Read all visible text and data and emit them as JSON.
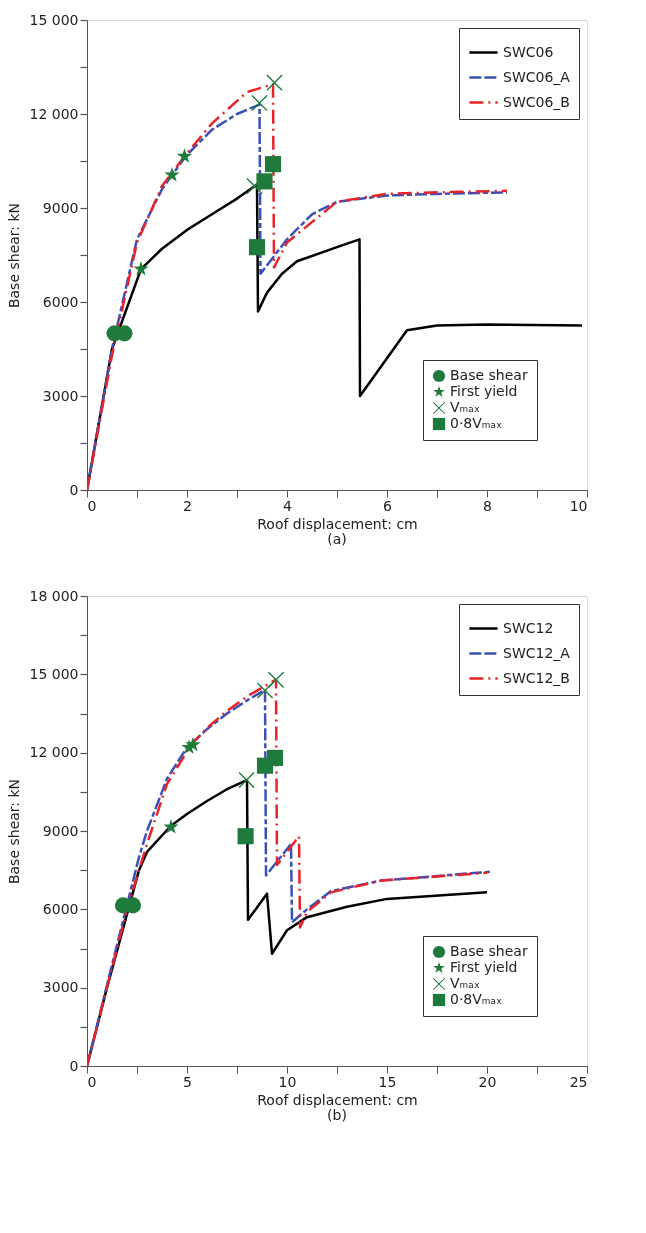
{
  "chart_data": [
    {
      "type": "line",
      "xlabel": "Roof displacement: cm",
      "ylabel": "Base shear: kN",
      "annotations": [
        "(a)"
      ],
      "grid": false,
      "legend": "top right",
      "xlim": [
        0,
        10
      ],
      "xticks": [
        0,
        {
          "value": 1,
          "label": null
        },
        2,
        {
          "value": 3,
          "label": null
        },
        4,
        {
          "value": 5,
          "label": null
        },
        6,
        {
          "value": 7,
          "label": null
        },
        8,
        {
          "value": 9,
          "label": null
        },
        10
      ],
      "ylim": [
        0,
        15000
      ],
      "yticks": [
        0,
        {
          "value": 1500,
          "label": null
        },
        3000,
        {
          "value": 4500,
          "label": null
        },
        6000,
        {
          "value": 7500,
          "label": null
        },
        9000,
        {
          "value": 10500,
          "label": null
        },
        {
          "value": 12000,
          "label": "12 000"
        },
        {
          "value": 13500,
          "label": null
        },
        {
          "value": 15000,
          "label": "15 000"
        }
      ],
      "series": [
        {
          "name": "SWC06",
          "color": "#000000",
          "line_style": "solid",
          "x": [
            0,
            0.5,
            1.08,
            1.5,
            2,
            2.5,
            3,
            3.4,
            3.42,
            3.6,
            3.9,
            4.2,
            5,
            5.45,
            5.46,
            6.4,
            7,
            8,
            9.9
          ],
          "values": [
            0,
            4500,
            7050,
            7700,
            8300,
            8800,
            9300,
            9750,
            5700,
            6300,
            6900,
            7300,
            7750,
            8000,
            3000,
            5100,
            5250,
            5280,
            5250
          ]
        },
        {
          "name": "SWC06_A",
          "color": "#3b4fb8",
          "line_style": "dashed",
          "x": [
            0,
            0.5,
            1,
            1.5,
            1.7,
            2,
            2.5,
            3,
            3.45,
            3.47,
            4,
            4.5,
            5,
            6,
            7,
            8.4
          ],
          "values": [
            0,
            4500,
            8000,
            9600,
            10050,
            10700,
            11500,
            12000,
            12300,
            6900,
            8000,
            8800,
            9200,
            9400,
            9450,
            9500
          ]
        },
        {
          "name": "SWC06_B",
          "color": "#e8232a",
          "line_style": "dashdot",
          "x": [
            0,
            0.5,
            1,
            1.5,
            1.95,
            2.5,
            3.2,
            3.72,
            3.74,
            4,
            5,
            6,
            7,
            8.4
          ],
          "values": [
            0,
            4300,
            7900,
            9700,
            10650,
            11700,
            12700,
            12950,
            7100,
            7900,
            9200,
            9450,
            9500,
            9550
          ]
        },
        {
          "name": "Base shear",
          "type": "scatter",
          "marker": "circle",
          "color": "#1e7b3c",
          "x": [
            0.55,
            0.75
          ],
          "values": [
            5000,
            5000
          ]
        },
        {
          "name": "First yield",
          "type": "scatter",
          "marker": "star",
          "color": "#1e7b3c",
          "x": [
            1.08,
            1.7,
            1.95
          ],
          "values": [
            7050,
            10050,
            10650
          ]
        },
        {
          "name": "Vₘₐₓ",
          "type": "scatter",
          "marker": "cross",
          "color": "#1e7b3c",
          "x": [
            3.35,
            3.45,
            3.75
          ],
          "values": [
            9700,
            12350,
            13000
          ]
        },
        {
          "name": "0·8Vₘₐₓ",
          "type": "scatter",
          "marker": "square",
          "color": "#1e7b3c",
          "x": [
            3.4,
            3.55,
            3.72
          ],
          "values": [
            7750,
            9850,
            10400
          ]
        }
      ]
    },
    {
      "type": "line",
      "xlabel": "Roof displacement: cm",
      "ylabel": "Base shear: kN",
      "annotations": [
        "(b)"
      ],
      "grid": false,
      "legend": "top right",
      "xlim": [
        0,
        25
      ],
      "xticks": [
        0,
        {
          "value": 2.5,
          "label": null
        },
        5,
        {
          "value": 7.5,
          "label": null
        },
        10,
        {
          "value": 12.5,
          "label": null
        },
        15,
        {
          "value": 17.5,
          "label": null
        },
        20,
        {
          "value": 22.5,
          "label": null
        },
        25
      ],
      "ylim": [
        0,
        18000
      ],
      "yticks": [
        0,
        {
          "value": 1500,
          "label": null
        },
        3000,
        {
          "value": 4500,
          "label": null
        },
        6000,
        {
          "value": 7500,
          "label": null
        },
        9000,
        {
          "value": 10500,
          "label": null
        },
        {
          "value": 12000,
          "label": "12 000"
        },
        {
          "value": 13500,
          "label": null
        },
        {
          "value": 15000,
          "label": "15 000"
        },
        {
          "value": 16500,
          "label": null
        },
        {
          "value": 18000,
          "label": "18 000"
        }
      ],
      "series": [
        {
          "name": "SWC12",
          "color": "#000000",
          "line_style": "solid",
          "x": [
            0,
            1,
            2.6,
            3,
            4.2,
            5,
            6,
            7,
            8,
            8.05,
            9,
            9.25,
            10,
            11,
            13,
            15,
            20
          ],
          "values": [
            0,
            3000,
            7500,
            8200,
            9200,
            9650,
            10150,
            10600,
            10950,
            5600,
            6600,
            4300,
            5200,
            5700,
            6100,
            6400,
            6650
          ]
        },
        {
          "name": "SWC12_A",
          "color": "#3b4fb8",
          "line_style": "dashed",
          "x": [
            0,
            1,
            2.6,
            3,
            4,
            5,
            6,
            7,
            8,
            8.9,
            8.95,
            10.2,
            10.25,
            11,
            12.2,
            14.7,
            20.3
          ],
          "values": [
            0,
            3100,
            8000,
            9000,
            11000,
            12200,
            12900,
            13500,
            14000,
            14400,
            7300,
            8500,
            5500,
            6000,
            6700,
            7100,
            7450
          ]
        },
        {
          "name": "SWC12_B",
          "color": "#e8232a",
          "line_style": "dashdot",
          "x": [
            0,
            1,
            2,
            3,
            4,
            5.2,
            6,
            7,
            8,
            9.45,
            9.5,
            10.6,
            10.65,
            11,
            12.2,
            14.7,
            20
          ],
          "values": [
            0,
            3000,
            6000,
            8500,
            10800,
            12300,
            12950,
            13600,
            14150,
            14800,
            7700,
            8800,
            5300,
            5900,
            6650,
            7100,
            7400
          ]
        },
        {
          "name": "Base shear",
          "type": "scatter",
          "marker": "circle",
          "color": "#1e7b3c",
          "x": [
            1.8,
            2.3
          ],
          "values": [
            6150,
            6150
          ]
        },
        {
          "name": "First yield",
          "type": "scatter",
          "marker": "star",
          "color": "#1e7b3c",
          "x": [
            4.2,
            5.1,
            5.3
          ],
          "values": [
            9150,
            12200,
            12300
          ]
        },
        {
          "name": "Vₘₐₓ",
          "type": "scatter",
          "marker": "cross",
          "color": "#1e7b3c",
          "x": [
            7.98,
            8.9,
            9.45
          ],
          "values": [
            10950,
            14380,
            14790
          ]
        },
        {
          "name": "0·8Vₘₐₓ",
          "type": "scatter",
          "marker": "square",
          "color": "#1e7b3c",
          "x": [
            7.93,
            8.9,
            9.4
          ],
          "values": [
            8800,
            11500,
            11800
          ]
        }
      ]
    }
  ]
}
